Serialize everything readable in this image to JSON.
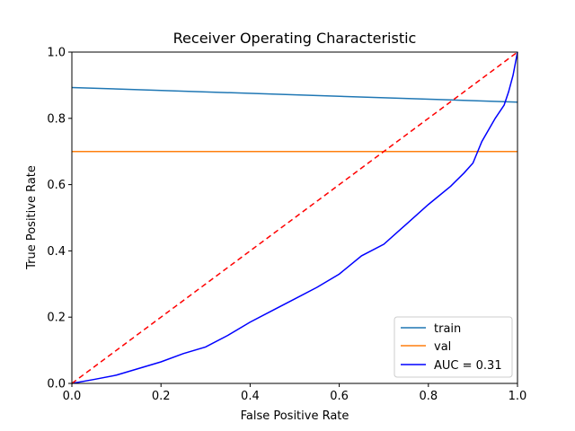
{
  "chart_data": {
    "type": "line",
    "title": "Receiver Operating Characteristic",
    "xlabel": "False Positive Rate",
    "ylabel": "True Positive Rate",
    "xlim": [
      0,
      1
    ],
    "ylim": [
      0,
      1
    ],
    "xticks": [
      "0.0",
      "0.2",
      "0.4",
      "0.6",
      "0.8",
      "1.0"
    ],
    "yticks": [
      "0.0",
      "0.2",
      "0.4",
      "0.6",
      "0.8",
      "1.0"
    ],
    "grid": false,
    "legend_position": "lower-right",
    "series": [
      {
        "name": "train",
        "color": "#1f77b4",
        "style": "solid",
        "x": [
          0,
          1
        ],
        "y": [
          0.893,
          0.849
        ]
      },
      {
        "name": "val",
        "color": "#ff7f0e",
        "style": "solid",
        "x": [
          0,
          1
        ],
        "y": [
          0.7,
          0.7
        ]
      },
      {
        "name": "AUC = 0.31",
        "color": "#0000ff",
        "style": "solid",
        "x": [
          0,
          0.05,
          0.1,
          0.15,
          0.2,
          0.25,
          0.3,
          0.35,
          0.4,
          0.45,
          0.5,
          0.55,
          0.6,
          0.65,
          0.7,
          0.75,
          0.8,
          0.85,
          0.88,
          0.9,
          0.92,
          0.95,
          0.97,
          0.98,
          0.99,
          1.0
        ],
        "y": [
          0,
          0.012,
          0.025,
          0.045,
          0.065,
          0.09,
          0.11,
          0.145,
          0.185,
          0.22,
          0.255,
          0.29,
          0.33,
          0.385,
          0.42,
          0.48,
          0.54,
          0.595,
          0.635,
          0.665,
          0.73,
          0.8,
          0.84,
          0.88,
          0.93,
          1.0
        ]
      },
      {
        "name": "",
        "color": "#ff0000",
        "style": "dashed",
        "x": [
          0,
          1
        ],
        "y": [
          0,
          1
        ]
      }
    ],
    "legend": [
      "train",
      "val",
      "AUC = 0.31"
    ]
  }
}
